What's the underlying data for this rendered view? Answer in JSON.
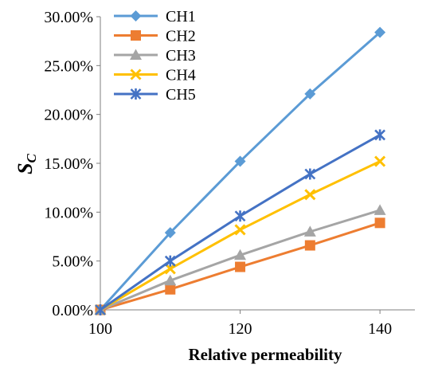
{
  "chart_data": {
    "type": "line",
    "title": "",
    "xlabel": "Relative permeability",
    "ylabel": "S",
    "ylabel_sub": "C",
    "x": [
      100,
      110,
      120,
      130,
      140
    ],
    "xlim": [
      100,
      145
    ],
    "xticks": [
      100,
      120,
      140
    ],
    "ylim": [
      0,
      0.3
    ],
    "yticks": [
      0,
      0.05,
      0.1,
      0.15,
      0.2,
      0.25,
      0.3
    ],
    "ytick_labels": [
      "0.00%",
      "5.00%",
      "10.00%",
      "15.00%",
      "20.00%",
      "25.00%",
      "30.00%"
    ],
    "grid": false,
    "legend_position": "top-left",
    "series": [
      {
        "name": "CH1",
        "color": "#5B9BD5",
        "marker": "diamond",
        "values": [
          0.0,
          0.079,
          0.152,
          0.221,
          0.284
        ]
      },
      {
        "name": "CH2",
        "color": "#ED7D31",
        "marker": "square",
        "values": [
          0.0,
          0.021,
          0.044,
          0.066,
          0.089
        ]
      },
      {
        "name": "CH3",
        "color": "#A5A5A5",
        "marker": "triangle",
        "values": [
          0.0,
          0.03,
          0.056,
          0.08,
          0.102
        ]
      },
      {
        "name": "CH4",
        "color": "#FFC000",
        "marker": "x",
        "values": [
          0.0,
          0.042,
          0.082,
          0.118,
          0.152
        ]
      },
      {
        "name": "CH5",
        "color": "#4472C4",
        "marker": "star",
        "values": [
          0.0,
          0.05,
          0.096,
          0.139,
          0.179
        ]
      }
    ]
  }
}
